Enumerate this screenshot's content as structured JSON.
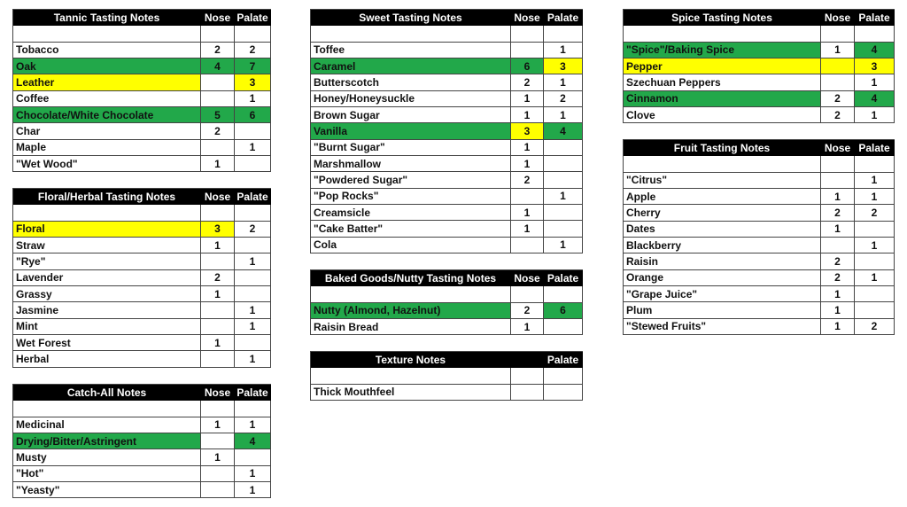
{
  "tables": [
    {
      "title": "Tannic Tasting Notes",
      "nose_header": "Nose",
      "palate_header": "Palate",
      "rows": [
        {
          "label": "Tobacco",
          "nose": 2,
          "palate": 2,
          "colors": [
            null,
            null,
            null
          ]
        },
        {
          "label": "Oak",
          "nose": 4,
          "palate": 7,
          "colors": [
            "#22a84a",
            "#22a84a",
            "#22a84a"
          ]
        },
        {
          "label": "Leather",
          "nose": null,
          "palate": 3,
          "colors": [
            "#ffff00",
            null,
            "#ffff00"
          ]
        },
        {
          "label": "Coffee",
          "nose": null,
          "palate": 1,
          "colors": [
            null,
            null,
            null
          ]
        },
        {
          "label": "Chocolate/White Chocolate",
          "nose": 5,
          "palate": 6,
          "colors": [
            "#22a84a",
            "#22a84a",
            "#22a84a"
          ]
        },
        {
          "label": "Char",
          "nose": 2,
          "palate": null,
          "colors": [
            null,
            null,
            null
          ]
        },
        {
          "label": "Maple",
          "nose": null,
          "palate": 1,
          "colors": [
            null,
            null,
            null
          ]
        },
        {
          "label": "\"Wet Wood\"",
          "nose": 1,
          "palate": null,
          "colors": [
            null,
            null,
            null
          ]
        }
      ]
    },
    {
      "title": "Floral/Herbal Tasting Notes",
      "nose_header": "Nose",
      "palate_header": "Palate",
      "rows": [
        {
          "label": "Floral",
          "nose": 3,
          "palate": 2,
          "colors": [
            "#ffff00",
            "#ffff00",
            null
          ]
        },
        {
          "label": "Straw",
          "nose": 1,
          "palate": null,
          "colors": [
            null,
            null,
            null
          ]
        },
        {
          "label": "\"Rye\"",
          "nose": null,
          "palate": 1,
          "colors": [
            null,
            null,
            null
          ]
        },
        {
          "label": "Lavender",
          "nose": 2,
          "palate": null,
          "colors": [
            null,
            null,
            null
          ]
        },
        {
          "label": "Grassy",
          "nose": 1,
          "palate": null,
          "colors": [
            null,
            null,
            null
          ]
        },
        {
          "label": "Jasmine",
          "nose": null,
          "palate": 1,
          "colors": [
            null,
            null,
            null
          ]
        },
        {
          "label": "Mint",
          "nose": null,
          "palate": 1,
          "colors": [
            null,
            null,
            null
          ]
        },
        {
          "label": "Wet Forest",
          "nose": 1,
          "palate": null,
          "colors": [
            null,
            null,
            null
          ]
        },
        {
          "label": "Herbal",
          "nose": null,
          "palate": 1,
          "colors": [
            null,
            null,
            null
          ]
        }
      ]
    },
    {
      "title": "Catch-All Notes",
      "nose_header": "Nose",
      "palate_header": "Palate",
      "rows": [
        {
          "label": "Medicinal",
          "nose": 1,
          "palate": 1,
          "colors": [
            null,
            null,
            null
          ]
        },
        {
          "label": "Drying/Bitter/Astringent",
          "nose": null,
          "palate": 4,
          "colors": [
            "#22a84a",
            null,
            "#22a84a"
          ]
        },
        {
          "label": "Musty",
          "nose": 1,
          "palate": null,
          "colors": [
            null,
            null,
            null
          ]
        },
        {
          "label": "\"Hot\"",
          "nose": null,
          "palate": 1,
          "colors": [
            null,
            null,
            null
          ]
        },
        {
          "label": "\"Yeasty\"",
          "nose": null,
          "palate": 1,
          "colors": [
            null,
            null,
            null
          ]
        }
      ]
    },
    {
      "title": "Sweet Tasting Notes",
      "nose_header": "Nose",
      "palate_header": "Palate",
      "rows": [
        {
          "label": "Toffee",
          "nose": null,
          "palate": 1,
          "colors": [
            null,
            null,
            null
          ]
        },
        {
          "label": "Caramel",
          "nose": 6,
          "palate": 3,
          "colors": [
            "#22a84a",
            "#22a84a",
            "#ffff00"
          ]
        },
        {
          "label": "Butterscotch",
          "nose": 2,
          "palate": 1,
          "colors": [
            null,
            null,
            null
          ]
        },
        {
          "label": "Honey/Honeysuckle",
          "nose": 1,
          "palate": 2,
          "colors": [
            null,
            null,
            null
          ]
        },
        {
          "label": "Brown Sugar",
          "nose": 1,
          "palate": 1,
          "colors": [
            null,
            null,
            null
          ]
        },
        {
          "label": "Vanilla",
          "nose": 3,
          "palate": 4,
          "colors": [
            "#22a84a",
            "#ffff00",
            "#22a84a"
          ]
        },
        {
          "label": "\"Burnt Sugar\"",
          "nose": 1,
          "palate": null,
          "colors": [
            null,
            null,
            null
          ]
        },
        {
          "label": "Marshmallow",
          "nose": 1,
          "palate": null,
          "colors": [
            null,
            null,
            null
          ]
        },
        {
          "label": "\"Powdered Sugar\"",
          "nose": 2,
          "palate": null,
          "colors": [
            null,
            null,
            null
          ]
        },
        {
          "label": "\"Pop Rocks\"",
          "nose": null,
          "palate": 1,
          "colors": [
            null,
            null,
            null
          ]
        },
        {
          "label": "Creamsicle",
          "nose": 1,
          "palate": null,
          "colors": [
            null,
            null,
            null
          ]
        },
        {
          "label": "\"Cake Batter\"",
          "nose": 1,
          "palate": null,
          "colors": [
            null,
            null,
            null
          ]
        },
        {
          "label": "Cola",
          "nose": null,
          "palate": 1,
          "colors": [
            null,
            null,
            null
          ]
        }
      ]
    },
    {
      "title": "Baked Goods/Nutty Tasting Notes",
      "nose_header": "Nose",
      "palate_header": "Palate",
      "rows": [
        {
          "label": "Nutty (Almond, Hazelnut)",
          "nose": 2,
          "palate": 6,
          "colors": [
            "#22a84a",
            null,
            "#22a84a"
          ]
        },
        {
          "label": "Raisin Bread",
          "nose": 1,
          "palate": null,
          "colors": [
            null,
            null,
            null
          ]
        }
      ]
    },
    {
      "title": "Texture Notes",
      "nose_header": null,
      "palate_header": "Palate",
      "rows": [
        {
          "label": "Thick Mouthfeel",
          "nose": null,
          "palate": null,
          "colors": [
            null,
            null,
            null
          ]
        }
      ]
    },
    {
      "title": "Spice Tasting Notes",
      "nose_header": "Nose",
      "palate_header": "Palate",
      "rows": [
        {
          "label": "\"Spice\"/Baking Spice",
          "nose": 1,
          "palate": 4,
          "colors": [
            "#22a84a",
            null,
            "#22a84a"
          ]
        },
        {
          "label": "Pepper",
          "nose": null,
          "palate": 3,
          "colors": [
            "#ffff00",
            "#ffff00",
            "#ffff00"
          ]
        },
        {
          "label": "Szechuan Peppers",
          "nose": null,
          "palate": 1,
          "colors": [
            null,
            null,
            null
          ]
        },
        {
          "label": "Cinnamon",
          "nose": 2,
          "palate": 4,
          "colors": [
            "#22a84a",
            null,
            "#22a84a"
          ]
        },
        {
          "label": "Clove",
          "nose": 2,
          "palate": 1,
          "colors": [
            null,
            null,
            null
          ]
        }
      ]
    },
    {
      "title": "Fruit Tasting Notes",
      "nose_header": "Nose",
      "palate_header": "Palate",
      "rows": [
        {
          "label": "\"Citrus\"",
          "nose": null,
          "palate": 1,
          "colors": [
            null,
            null,
            null
          ]
        },
        {
          "label": "Apple",
          "nose": 1,
          "palate": 1,
          "colors": [
            null,
            null,
            null
          ]
        },
        {
          "label": "Cherry",
          "nose": 2,
          "palate": 2,
          "colors": [
            null,
            null,
            null
          ]
        },
        {
          "label": "Dates",
          "nose": 1,
          "palate": null,
          "colors": [
            null,
            null,
            null
          ]
        },
        {
          "label": "Blackberry",
          "nose": null,
          "palate": 1,
          "colors": [
            null,
            null,
            null
          ]
        },
        {
          "label": "Raisin",
          "nose": 2,
          "palate": null,
          "colors": [
            null,
            null,
            null
          ]
        },
        {
          "label": "Orange",
          "nose": 2,
          "palate": 1,
          "colors": [
            null,
            null,
            null
          ]
        },
        {
          "label": "\"Grape Juice\"",
          "nose": 1,
          "palate": null,
          "colors": [
            null,
            null,
            null
          ]
        },
        {
          "label": "Plum",
          "nose": 1,
          "palate": null,
          "colors": [
            null,
            null,
            null
          ]
        },
        {
          "label": "\"Stewed Fruits\"",
          "nose": 1,
          "palate": 2,
          "colors": [
            null,
            null,
            null
          ]
        }
      ]
    }
  ]
}
